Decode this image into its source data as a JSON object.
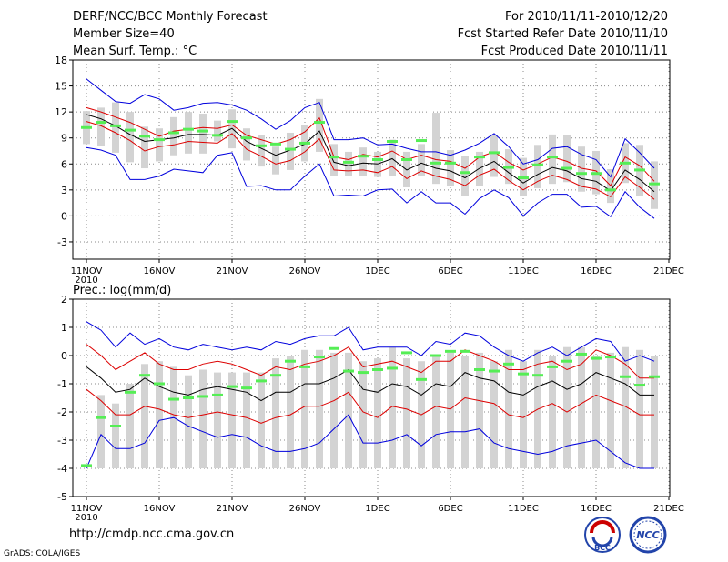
{
  "header": {
    "title": "DERF/NCC/BCC Monthly Forecast",
    "member_size": "Member Size=40",
    "variable": "Mean Surf. Temp.: °C",
    "period": "For 2010/11/11-2010/12/20",
    "started": "Fcst Started Refer Date 2010/11/10",
    "produced": "Fcst Produced Date 2010/11/11"
  },
  "colors": {
    "box": "#d3d3d3",
    "median": "#55ee55",
    "mean": "#000000",
    "sigma": "#dd0000",
    "extreme": "#0000dd",
    "grid": "#888888"
  },
  "chart_data": [
    {
      "type": "box-plot ensemble time series",
      "title": "Mean Surf. Temp.: °C",
      "ylim": [
        -5,
        18
      ],
      "yticks": [
        -3,
        0,
        3,
        6,
        9,
        12,
        15,
        18
      ],
      "xtick_labels": [
        "11NOV",
        "16NOV",
        "21NOV",
        "26NOV",
        "1DEC",
        "6DEC",
        "11DEC",
        "16DEC",
        "21DEC"
      ],
      "x_year_label": "2010",
      "days": 40,
      "series": {
        "max": [
          15.8,
          14.5,
          13.2,
          13.0,
          14.0,
          13.5,
          12.2,
          12.5,
          13.0,
          13.1,
          12.8,
          12.2,
          11.2,
          10.0,
          11.0,
          12.5,
          13.1,
          8.8,
          8.8,
          9.0,
          8.2,
          8.3,
          7.8,
          7.4,
          7.4,
          7.0,
          7.6,
          8.4,
          9.5,
          8.0,
          6.0,
          6.5,
          7.8,
          8.0,
          7.1,
          6.5,
          4.5,
          8.9,
          7.3,
          5.5
        ],
        "sigma_hi": [
          12.5,
          12.0,
          11.4,
          10.8,
          10.0,
          9.2,
          9.8,
          10.0,
          10.2,
          10.1,
          10.5,
          9.3,
          8.8,
          8.3,
          8.8,
          9.7,
          11.3,
          6.8,
          6.5,
          7.1,
          6.8,
          7.5,
          6.5,
          7.0,
          6.5,
          6.3,
          5.5,
          6.8,
          7.4,
          6.2,
          5.3,
          6.0,
          6.8,
          6.3,
          5.5,
          5.2,
          3.5,
          6.8,
          5.8,
          4.0
        ],
        "mean": [
          11.7,
          11.2,
          10.4,
          9.4,
          8.6,
          8.8,
          9.0,
          9.4,
          9.4,
          9.3,
          10.1,
          8.6,
          7.8,
          7.0,
          7.6,
          8.3,
          9.8,
          6.2,
          5.8,
          6.1,
          6.0,
          6.6,
          5.3,
          6.1,
          5.5,
          5.2,
          4.4,
          5.5,
          6.3,
          5.0,
          3.8,
          4.8,
          5.6,
          5.2,
          4.3,
          4.0,
          2.9,
          5.3,
          4.2,
          2.8
        ],
        "sigma_lo": [
          10.9,
          10.4,
          9.6,
          8.7,
          7.5,
          8.0,
          8.2,
          8.6,
          8.5,
          8.4,
          9.5,
          7.7,
          6.9,
          6.0,
          6.4,
          7.4,
          8.9,
          5.3,
          5.2,
          5.3,
          5.0,
          5.7,
          4.3,
          5.2,
          4.6,
          4.2,
          3.5,
          4.7,
          5.4,
          4.1,
          3.0,
          4.0,
          4.7,
          4.2,
          3.4,
          3.1,
          2.2,
          4.5,
          3.3,
          1.9
        ],
        "min": [
          7.9,
          7.6,
          7.0,
          4.2,
          4.2,
          4.6,
          5.4,
          5.2,
          5.0,
          7.0,
          7.3,
          3.4,
          3.5,
          3.0,
          3.0,
          4.6,
          6.0,
          2.3,
          2.4,
          2.3,
          3.0,
          3.1,
          1.5,
          2.8,
          1.5,
          1.5,
          0.2,
          2.0,
          3.0,
          2.1,
          0.0,
          1.5,
          2.5,
          2.5,
          1.0,
          1.1,
          -0.1,
          2.8,
          1.0,
          -0.3
        ],
        "box_lo": [
          8.3,
          8.1,
          7.3,
          6.2,
          5.5,
          6.3,
          7.0,
          7.2,
          7.2,
          8.6,
          7.8,
          6.4,
          5.7,
          4.8,
          5.3,
          6.3,
          7.4,
          4.6,
          4.6,
          4.6,
          4.5,
          4.6,
          3.3,
          4.6,
          3.7,
          3.4,
          2.3,
          3.5,
          4.5,
          3.7,
          2.3,
          3.2,
          3.7,
          3.9,
          2.8,
          2.5,
          1.5,
          3.8,
          2.3,
          0.8
        ],
        "box_hi": [
          12.1,
          12.5,
          13.1,
          12.0,
          10.3,
          10.1,
          11.4,
          12.0,
          11.8,
          11.0,
          12.3,
          10.1,
          9.3,
          8.0,
          9.6,
          10.5,
          13.5,
          8.3,
          7.4,
          7.9,
          7.4,
          8.8,
          7.4,
          8.3,
          11.9,
          7.6,
          6.9,
          7.4,
          9.3,
          7.7,
          6.7,
          8.2,
          9.4,
          9.3,
          8.0,
          7.5,
          5.4,
          8.4,
          8.2,
          6.3
        ],
        "median": [
          10.2,
          10.8,
          10.4,
          9.9,
          9.2,
          8.8,
          9.6,
          10.0,
          9.8,
          9.3,
          10.9,
          9.0,
          8.1,
          8.3,
          7.7,
          8.4,
          10.8,
          6.8,
          6.2,
          6.9,
          6.5,
          8.6,
          6.5,
          8.7,
          6.1,
          6.1,
          5.0,
          6.8,
          7.3,
          5.6,
          4.4,
          5.9,
          6.8,
          5.5,
          4.9,
          4.9,
          3.0,
          6.1,
          5.3,
          3.7
        ]
      }
    },
    {
      "type": "box-plot ensemble time series",
      "title": "Prec.: log(mm/d)",
      "ylim": [
        -5,
        2
      ],
      "yticks": [
        -5,
        -4,
        -3,
        -2,
        -1,
        0,
        1,
        2
      ],
      "xtick_labels": [
        "11NOV",
        "16NOV",
        "21NOV",
        "26NOV",
        "1DEC",
        "6DEC",
        "11DEC",
        "16DEC",
        "21DEC"
      ],
      "x_year_label": "2010",
      "days": 40,
      "series": {
        "max": [
          1.2,
          0.9,
          0.3,
          0.8,
          0.4,
          0.6,
          0.3,
          0.2,
          0.4,
          0.3,
          0.2,
          0.3,
          0.2,
          0.5,
          0.4,
          0.6,
          0.7,
          0.7,
          1.0,
          0.2,
          0.3,
          0.3,
          0.3,
          0.0,
          0.5,
          0.4,
          0.8,
          0.7,
          0.3,
          0.0,
          -0.2,
          0.1,
          0.3,
          0.0,
          0.3,
          0.6,
          0.5,
          -0.2,
          0.0,
          -0.2
        ],
        "sigma_hi": [
          0.4,
          0.0,
          -0.5,
          -0.2,
          0.1,
          -0.3,
          -0.5,
          -0.5,
          -0.3,
          -0.2,
          -0.3,
          -0.5,
          -0.7,
          -0.4,
          -0.5,
          -0.3,
          -0.2,
          0.0,
          0.3,
          -0.4,
          -0.3,
          -0.2,
          -0.4,
          -0.6,
          -0.2,
          -0.2,
          0.2,
          0.0,
          -0.2,
          -0.5,
          -0.5,
          -0.3,
          -0.2,
          -0.5,
          -0.3,
          0.2,
          0.0,
          -0.3,
          -0.8,
          -0.8
        ],
        "mean": [
          -0.4,
          -0.8,
          -1.3,
          -1.2,
          -0.8,
          -1.1,
          -1.3,
          -1.4,
          -1.2,
          -1.1,
          -1.2,
          -1.3,
          -1.6,
          -1.3,
          -1.3,
          -1.0,
          -1.0,
          -0.8,
          -0.5,
          -1.2,
          -1.3,
          -1.0,
          -1.1,
          -1.4,
          -1.0,
          -1.1,
          -0.6,
          -0.8,
          -0.9,
          -1.3,
          -1.4,
          -1.1,
          -0.9,
          -1.2,
          -1.0,
          -0.6,
          -0.8,
          -1.0,
          -1.4,
          -1.4
        ],
        "sigma_lo": [
          -1.2,
          -1.6,
          -2.1,
          -2.1,
          -1.8,
          -1.9,
          -2.1,
          -2.2,
          -2.1,
          -2.0,
          -2.1,
          -2.2,
          -2.4,
          -2.2,
          -2.1,
          -1.8,
          -1.8,
          -1.6,
          -1.3,
          -2.0,
          -2.2,
          -1.8,
          -1.9,
          -2.1,
          -1.8,
          -1.9,
          -1.5,
          -1.6,
          -1.7,
          -2.1,
          -2.2,
          -1.9,
          -1.7,
          -2.0,
          -1.7,
          -1.4,
          -1.6,
          -1.8,
          -2.1,
          -2.1
        ],
        "min": [
          -4.0,
          -2.8,
          -3.3,
          -3.3,
          -3.1,
          -2.3,
          -2.2,
          -2.5,
          -2.7,
          -2.9,
          -2.8,
          -2.9,
          -3.2,
          -3.4,
          -3.4,
          -3.3,
          -3.1,
          -2.6,
          -2.1,
          -3.1,
          -3.1,
          -3.0,
          -2.8,
          -3.2,
          -2.8,
          -2.7,
          -2.7,
          -2.6,
          -3.1,
          -3.3,
          -3.4,
          -3.5,
          -3.4,
          -3.2,
          -3.1,
          -3.0,
          -3.4,
          -3.8,
          -4.0,
          -4.0
        ],
        "box_lo": [
          -4.0,
          -4.0,
          -4.0,
          -4.0,
          -4.0,
          -4.0,
          -4.0,
          -4.0,
          -4.0,
          -4.0,
          -4.0,
          -4.0,
          -4.0,
          -4.0,
          -4.0,
          -4.0,
          -4.0,
          -4.0,
          -4.0,
          -4.0,
          -4.0,
          -4.0,
          -4.0,
          -4.0,
          -4.0,
          -4.0,
          -4.0,
          -4.0,
          -4.0,
          -4.0,
          -4.0,
          -4.0,
          -4.0,
          -4.0,
          -4.0,
          -4.0,
          -4.0,
          -4.0,
          -4.0,
          -4.0
        ],
        "box_hi": [
          -4.0,
          -1.4,
          -1.7,
          -1.0,
          -0.3,
          -0.2,
          -0.4,
          -0.7,
          -0.5,
          -0.6,
          -0.6,
          -0.6,
          -0.6,
          -0.1,
          0.0,
          0.2,
          0.2,
          0.1,
          0.1,
          -0.2,
          -0.1,
          0.3,
          -0.1,
          -0.2,
          0.0,
          0.1,
          0.0,
          0.1,
          -0.2,
          0.2,
          -0.2,
          0.2,
          0.0,
          0.3,
          0.3,
          0.0,
          0.1,
          0.3,
          0.2,
          0.0
        ],
        "median": [
          -3.9,
          -2.2,
          -2.5,
          -1.3,
          -0.7,
          -1.0,
          -1.55,
          -1.5,
          -1.45,
          -1.4,
          -1.1,
          -1.15,
          -0.9,
          -0.7,
          -0.2,
          -0.4,
          -0.05,
          0.25,
          -0.55,
          -0.6,
          -0.5,
          -0.45,
          0.1,
          -0.85,
          0.0,
          0.15,
          0.15,
          -0.5,
          -0.55,
          -0.3,
          -0.65,
          -0.7,
          -0.4,
          -0.2,
          0.05,
          -0.1,
          -0.05,
          -0.75,
          -1.05,
          -0.75
        ]
      }
    }
  ],
  "footer": {
    "url": "http://cmdp.ncc.cma.gov.cn",
    "grads": "GrADS: COLA/IGES"
  },
  "logos": {
    "bcc": "BCC",
    "ncc": "NCC"
  }
}
